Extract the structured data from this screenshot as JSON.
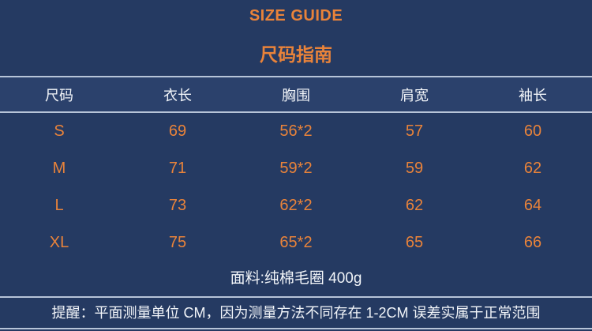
{
  "header": {
    "title_en": "SIZE GUIDE",
    "title_zh": "尺码指南"
  },
  "table": {
    "headers": [
      "尺码",
      "衣长",
      "胸围",
      "肩宽",
      "袖长"
    ],
    "rows": [
      {
        "size": "S",
        "values": [
          "69",
          "56*2",
          "57",
          "60"
        ]
      },
      {
        "size": "M",
        "values": [
          "71",
          "59*2",
          "59",
          "62"
        ]
      },
      {
        "size": "L",
        "values": [
          "73",
          "62*2",
          "62",
          "64"
        ]
      },
      {
        "size": "XL",
        "values": [
          "75",
          "65*2",
          "65",
          "66"
        ]
      }
    ]
  },
  "notes": {
    "fabric": "面料:纯棉毛圈 400g",
    "reminder": "提醒：平面测量单位 CM，因为测量方法不同存在 1-2CM 误差实属于正常范围"
  },
  "colors": {
    "background": "#253a62",
    "header_band": "#2b416c",
    "divider": "#b7c4d8",
    "accent_orange": "#e9833a",
    "text_white": "#f2f5f9"
  },
  "chart_data": {
    "type": "table",
    "title": "SIZE GUIDE 尺码指南",
    "columns": [
      "尺码",
      "衣长",
      "胸围",
      "肩宽",
      "袖长"
    ],
    "rows": [
      [
        "S",
        "69",
        "56*2",
        "57",
        "60"
      ],
      [
        "M",
        "71",
        "59*2",
        "59",
        "62"
      ],
      [
        "L",
        "73",
        "62*2",
        "62",
        "64"
      ],
      [
        "XL",
        "75",
        "65*2",
        "65",
        "66"
      ]
    ],
    "unit": "CM",
    "footnotes": [
      "面料:纯棉毛圈 400g",
      "提醒：平面测量单位 CM，因为测量方法不同存在 1-2CM 误差实属于正常范围"
    ],
    "layout": {
      "grid": "horizontal rules only",
      "accent": "orange values on navy"
    }
  }
}
